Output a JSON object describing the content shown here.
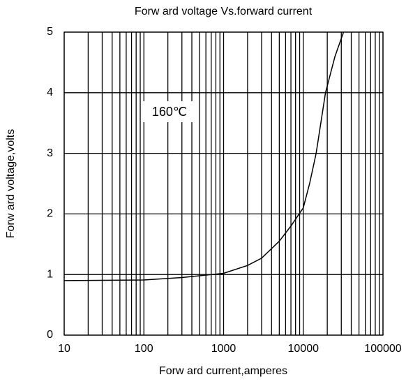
{
  "chart_data": {
    "type": "line",
    "title": "Forw ard voltage Vs.forward current",
    "x_label": "Forw ard current,amperes",
    "y_label": "Forw ard voltage,volts",
    "annotation": "160℃",
    "xscale": "log",
    "xlim": [
      10,
      100000
    ],
    "ylim": [
      0,
      5
    ],
    "xticks": [
      10,
      100,
      1000,
      10000,
      100000
    ],
    "yticks": [
      0,
      1,
      2,
      3,
      4,
      5
    ],
    "xminor": [
      20,
      30,
      40,
      50,
      60,
      70,
      80,
      90,
      200,
      300,
      400,
      500,
      600,
      700,
      800,
      900,
      2000,
      3000,
      4000,
      5000,
      6000,
      7000,
      8000,
      9000,
      20000,
      30000,
      40000,
      50000,
      60000,
      70000,
      80000,
      90000
    ],
    "grid": true,
    "series": [
      {
        "name": null,
        "color": "#000000",
        "x": [
          10,
          100,
          300,
          1000,
          2000,
          3000,
          5000,
          7000,
          10000,
          12000,
          14500,
          19000,
          25000,
          32000
        ],
        "values": [
          0.9,
          0.91,
          0.95,
          1.02,
          1.15,
          1.27,
          1.55,
          1.8,
          2.1,
          2.5,
          3.0,
          4.0,
          4.6,
          5.0
        ]
      }
    ]
  }
}
